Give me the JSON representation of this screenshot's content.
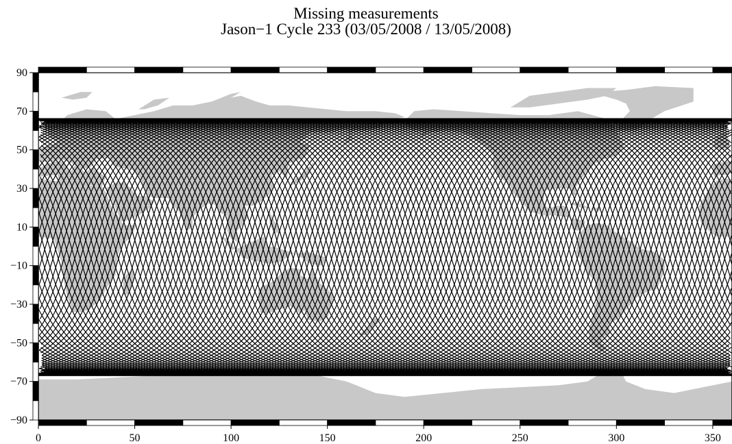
{
  "map": {
    "title": "Missing measurements",
    "subtitle": "Jason−1 Cycle 233 (03/05/2008 / 13/05/2008)",
    "projection": "equirectangular",
    "lon_range": [
      0,
      360
    ],
    "lat_range": [
      -90,
      90
    ],
    "y_ticks": [
      {
        "value": 90,
        "label": "90"
      },
      {
        "value": 70,
        "label": "70"
      },
      {
        "value": 50,
        "label": "50"
      },
      {
        "value": 30,
        "label": "30"
      },
      {
        "value": 10,
        "label": "10"
      },
      {
        "value": -10,
        "label": "−10"
      },
      {
        "value": -30,
        "label": "−30"
      },
      {
        "value": -50,
        "label": "−50"
      },
      {
        "value": -70,
        "label": "−70"
      },
      {
        "value": -90,
        "label": "−90"
      }
    ],
    "x_ticks": [
      {
        "value": 0,
        "label": "0"
      },
      {
        "value": 50,
        "label": "50"
      },
      {
        "value": 100,
        "label": "100"
      },
      {
        "value": 150,
        "label": "150"
      },
      {
        "value": 200,
        "label": "200"
      },
      {
        "value": 250,
        "label": "250"
      },
      {
        "value": 300,
        "label": "300"
      },
      {
        "value": 350,
        "label": "350"
      }
    ],
    "colors": {
      "land": "#c8c8c8",
      "ocean": "#ffffff",
      "tracks": "#000000",
      "frame": "#000000"
    },
    "track_info": {
      "inclination_deg": 66.0,
      "ascending_passes": 127,
      "descending_passes": 127
    }
  }
}
